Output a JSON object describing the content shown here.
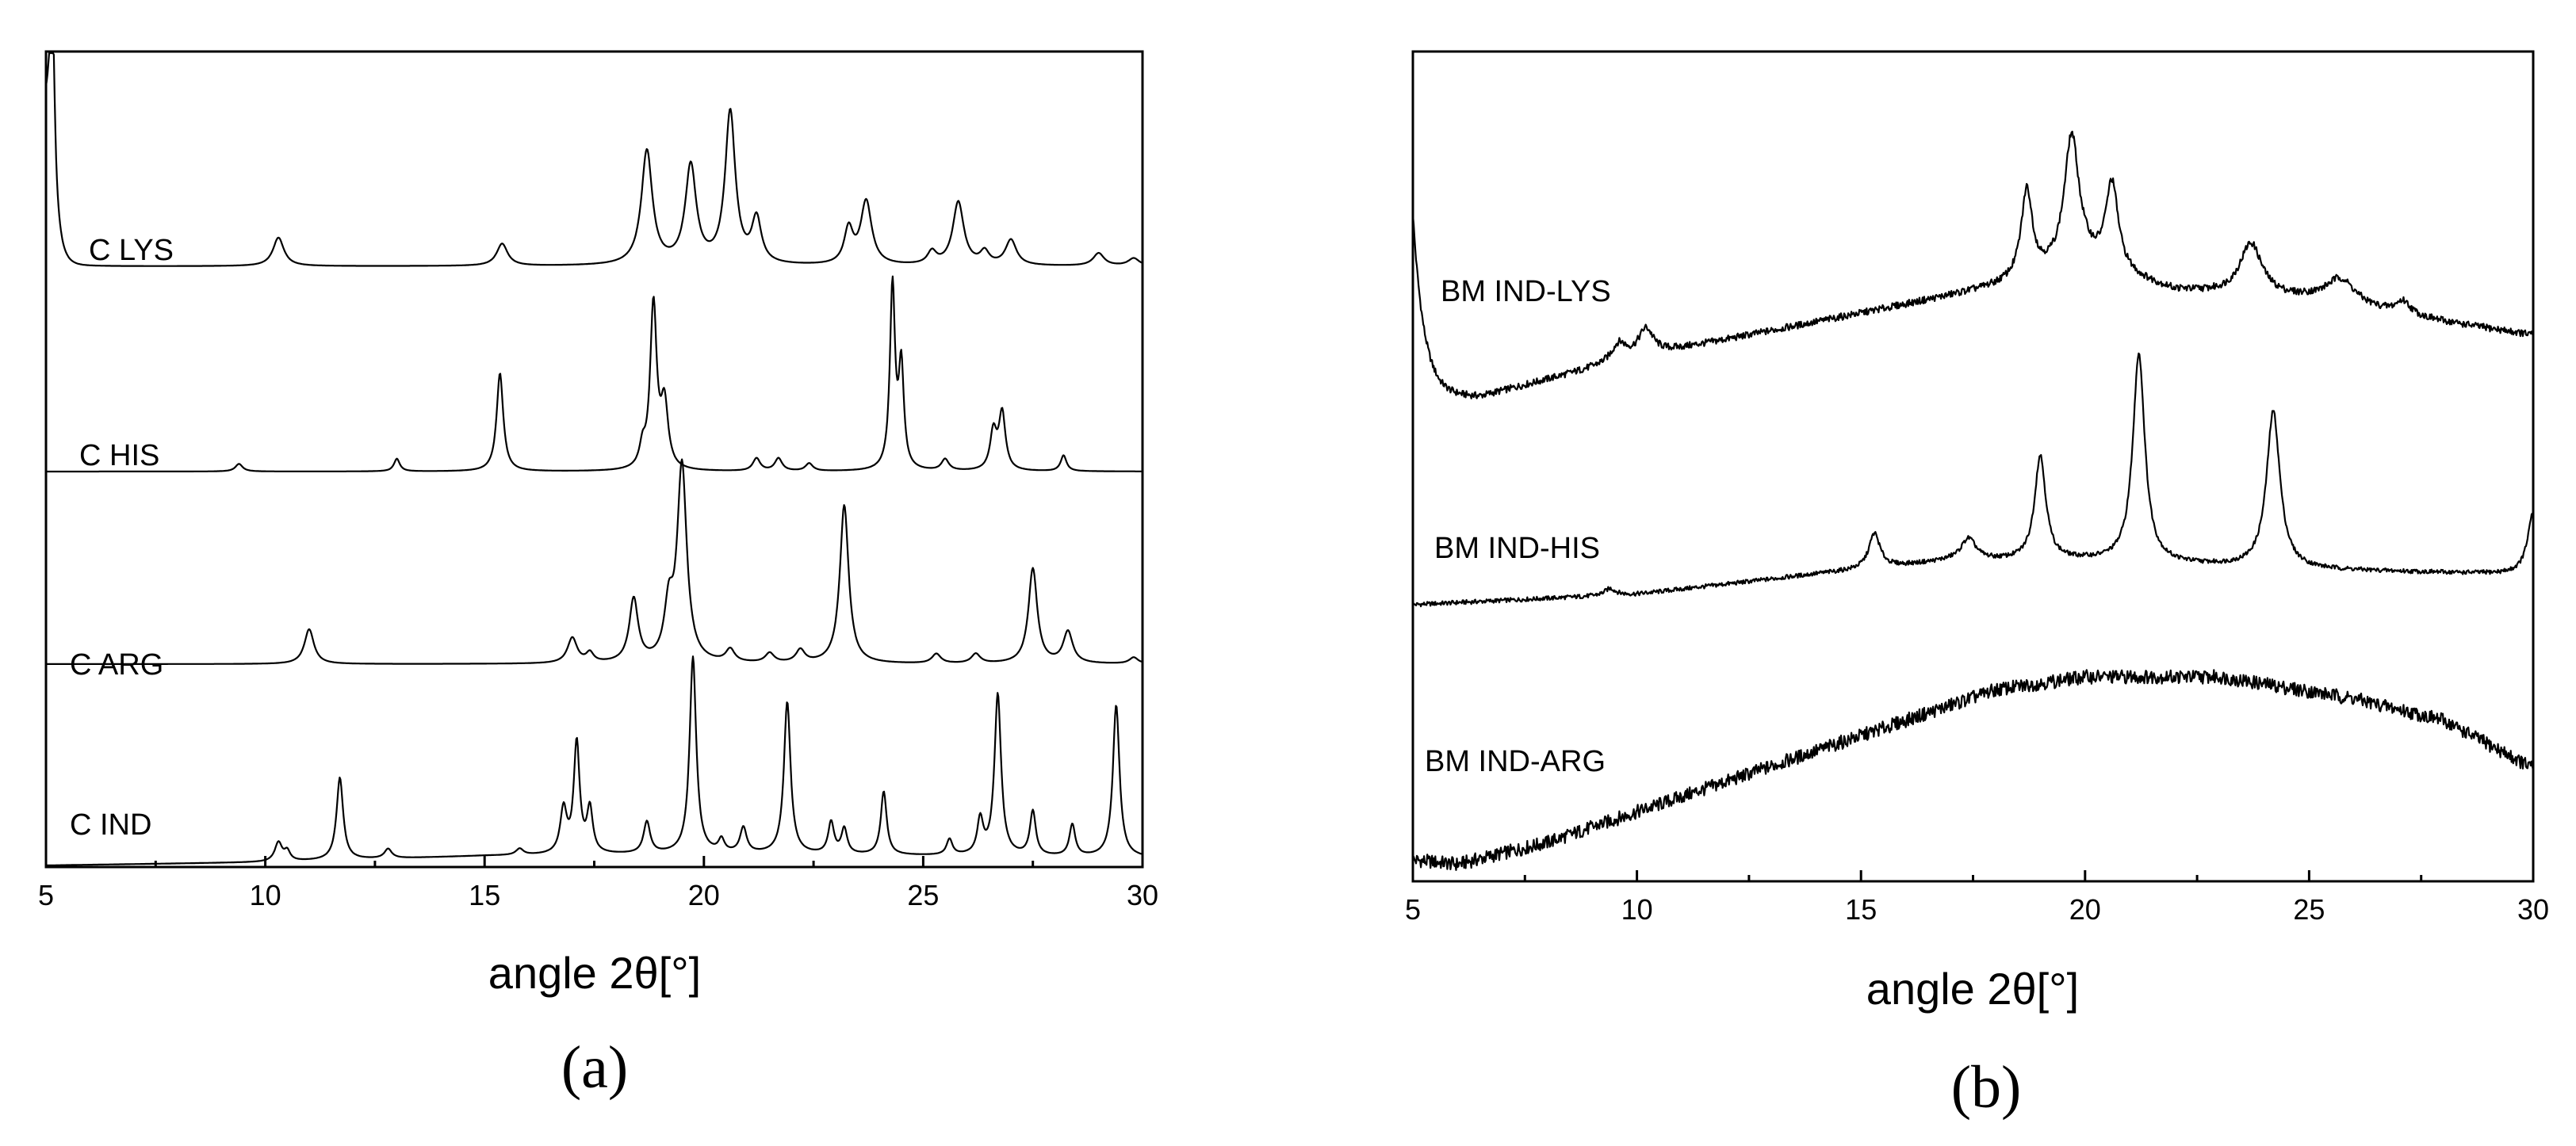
{
  "chart_data": [
    {
      "type": "line",
      "panel_label": "(a)",
      "xlabel": "angle 2θ[°]",
      "ylabel": "",
      "xlim": [
        5,
        30
      ],
      "xticks": [
        5,
        10,
        15,
        20,
        25,
        30
      ],
      "y_axis_ticks": false,
      "grid": false,
      "series": [
        {
          "name": "C LYS",
          "baseline": 0.1,
          "onset": {
            "x": 5.1,
            "height": 2.5,
            "decay": 0.12
          },
          "peaks": [
            [
              5.15,
              2.5,
              0.06
            ],
            [
              10.3,
              0.45,
              0.15
            ],
            [
              15.4,
              0.35,
              0.15
            ],
            [
              18.7,
              1.8,
              0.15
            ],
            [
              19.7,
              1.55,
              0.15
            ],
            [
              20.6,
              2.4,
              0.14
            ],
            [
              21.2,
              0.7,
              0.13
            ],
            [
              23.3,
              0.55,
              0.12
            ],
            [
              23.7,
              1.0,
              0.15
            ],
            [
              25.2,
              0.2,
              0.12
            ],
            [
              25.8,
              1.0,
              0.15
            ],
            [
              26.4,
              0.2,
              0.12
            ],
            [
              27.0,
              0.4,
              0.15
            ],
            [
              29.0,
              0.2,
              0.15
            ],
            [
              29.8,
              0.12,
              0.15
            ]
          ]
        },
        {
          "name": "C HIS",
          "baseline": 0.05,
          "peaks": [
            [
              9.4,
              0.12,
              0.1
            ],
            [
              13.0,
              0.2,
              0.08
            ],
            [
              15.35,
              1.55,
              0.09
            ],
            [
              18.6,
              0.3,
              0.08
            ],
            [
              18.85,
              2.6,
              0.09
            ],
            [
              19.1,
              1.0,
              0.1
            ],
            [
              21.2,
              0.2,
              0.1
            ],
            [
              21.7,
              0.2,
              0.1
            ],
            [
              22.4,
              0.12,
              0.1
            ],
            [
              24.3,
              2.9,
              0.07
            ],
            [
              24.5,
              1.6,
              0.07
            ],
            [
              25.5,
              0.18,
              0.1
            ],
            [
              26.6,
              0.6,
              0.09
            ],
            [
              26.8,
              0.9,
              0.09
            ],
            [
              28.2,
              0.25,
              0.08
            ]
          ]
        },
        {
          "name": "C ARG",
          "baseline": 0.0,
          "peaks": [
            [
              11.0,
              0.55,
              0.13
            ],
            [
              17.0,
              0.4,
              0.13
            ],
            [
              17.4,
              0.15,
              0.1
            ],
            [
              18.4,
              1.0,
              0.12
            ],
            [
              19.2,
              0.8,
              0.12
            ],
            [
              19.5,
              3.1,
              0.13
            ],
            [
              20.6,
              0.2,
              0.12
            ],
            [
              21.5,
              0.15,
              0.12
            ],
            [
              22.2,
              0.2,
              0.12
            ],
            [
              23.2,
              2.5,
              0.12
            ],
            [
              25.3,
              0.15,
              0.12
            ],
            [
              26.2,
              0.15,
              0.12
            ],
            [
              27.5,
              1.5,
              0.12
            ],
            [
              28.3,
              0.5,
              0.13
            ],
            [
              29.8,
              0.1,
              0.12
            ]
          ]
        },
        {
          "name": "C IND",
          "baseline": 0.0,
          "ramp": [
            [
              5,
              0.0
            ],
            [
              10,
              0.05
            ],
            [
              15,
              0.15
            ],
            [
              20,
              0.18
            ],
            [
              25,
              0.15
            ],
            [
              30,
              0.12
            ]
          ],
          "peaks": [
            [
              10.3,
              0.3,
              0.1
            ],
            [
              10.5,
              0.15,
              0.08
            ],
            [
              11.7,
              1.3,
              0.09
            ],
            [
              12.8,
              0.15,
              0.1
            ],
            [
              15.8,
              0.1,
              0.1
            ],
            [
              16.8,
              0.7,
              0.09
            ],
            [
              17.1,
              1.75,
              0.08
            ],
            [
              17.4,
              0.7,
              0.08
            ],
            [
              18.7,
              0.5,
              0.09
            ],
            [
              19.75,
              3.1,
              0.09
            ],
            [
              20.4,
              0.2,
              0.08
            ],
            [
              20.9,
              0.4,
              0.09
            ],
            [
              21.9,
              2.4,
              0.09
            ],
            [
              22.9,
              0.5,
              0.08
            ],
            [
              23.2,
              0.4,
              0.08
            ],
            [
              24.1,
              1.0,
              0.08
            ],
            [
              25.6,
              0.25,
              0.08
            ],
            [
              26.3,
              0.55,
              0.08
            ],
            [
              26.7,
              2.55,
              0.09
            ],
            [
              27.5,
              0.7,
              0.08
            ],
            [
              28.4,
              0.5,
              0.08
            ],
            [
              29.4,
              2.4,
              0.09
            ]
          ]
        }
      ]
    },
    {
      "type": "line",
      "panel_label": "(b)",
      "xlabel": "angle 2θ[°]",
      "ylabel": "",
      "xlim": [
        5,
        30
      ],
      "xticks": [
        5,
        10,
        15,
        20,
        25,
        30
      ],
      "y_axis_ticks": false,
      "grid": false,
      "series": [
        {
          "name": "BM IND-LYS",
          "baseline": 0.0,
          "noise": 0.04,
          "onset": {
            "x": 5.0,
            "height": 2.1,
            "decay": 0.25
          },
          "ramp": [
            [
              5,
              0.0
            ],
            [
              6.5,
              0.0
            ],
            [
              10,
              0.45
            ],
            [
              15,
              0.95
            ],
            [
              18,
              1.25
            ],
            [
              20,
              1.5
            ],
            [
              22,
              1.2
            ],
            [
              25,
              1.1
            ],
            [
              28,
              0.85
            ],
            [
              30,
              0.7
            ]
          ],
          "peaks": [
            [
              9.6,
              0.2,
              0.2
            ],
            [
              10.2,
              0.3,
              0.2
            ],
            [
              18.7,
              1.0,
              0.15
            ],
            [
              19.7,
              1.5,
              0.2
            ],
            [
              20.6,
              1.0,
              0.17
            ],
            [
              23.7,
              0.6,
              0.3
            ],
            [
              25.7,
              0.3,
              0.4
            ],
            [
              27.1,
              0.15,
              0.2
            ]
          ]
        },
        {
          "name": "BM IND-HIS",
          "baseline": 0.0,
          "noise": 0.025,
          "ramp": [
            [
              5,
              0.0
            ],
            [
              10,
              0.12
            ],
            [
              14,
              0.35
            ],
            [
              17,
              0.5
            ],
            [
              20,
              0.5
            ],
            [
              25,
              0.4
            ],
            [
              29.5,
              0.35
            ],
            [
              30,
              0.35
            ]
          ],
          "peaks": [
            [
              9.4,
              0.08,
              0.15
            ],
            [
              15.3,
              0.4,
              0.15
            ],
            [
              17.4,
              0.25,
              0.2
            ],
            [
              19.0,
              1.2,
              0.15
            ],
            [
              21.2,
              2.4,
              0.16
            ],
            [
              24.2,
              1.8,
              0.18
            ],
            [
              30.0,
              0.7,
              0.15
            ]
          ]
        },
        {
          "name": "BM IND-ARG",
          "baseline": 0.0,
          "noise": 0.08,
          "ramp": [
            [
              5,
              0.0
            ],
            [
              6,
              -0.05
            ],
            [
              8,
              0.2
            ],
            [
              12,
              0.9
            ],
            [
              16,
              1.6
            ],
            [
              18,
              1.95
            ],
            [
              20,
              2.1
            ],
            [
              23,
              2.1
            ],
            [
              26,
              1.85
            ],
            [
              28,
              1.6
            ],
            [
              30,
              1.05
            ]
          ],
          "peaks": []
        }
      ]
    }
  ]
}
